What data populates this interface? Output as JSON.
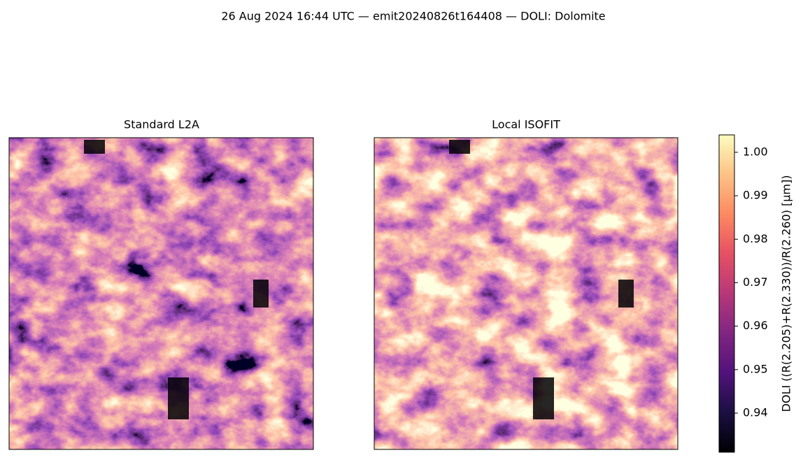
{
  "chart_data": {
    "type": "image",
    "title": "26 Aug 2024 16:44 UTC — emit20240826t164408 — DOLI: Dolomite",
    "panels": [
      {
        "title": "Standard L2A"
      },
      {
        "title": "Local ISOFIT"
      }
    ],
    "colorbar": {
      "label": "DOLI  ((R(2.205)+R(2.330))/R(2.260)  [µm])",
      "colormap": "magma",
      "lim": [
        0.931,
        1.004
      ],
      "ticks": [
        0.94,
        0.95,
        0.96,
        0.97,
        0.98,
        0.99,
        {
          "value": 1,
          "label": "1.00"
        }
      ]
    }
  }
}
